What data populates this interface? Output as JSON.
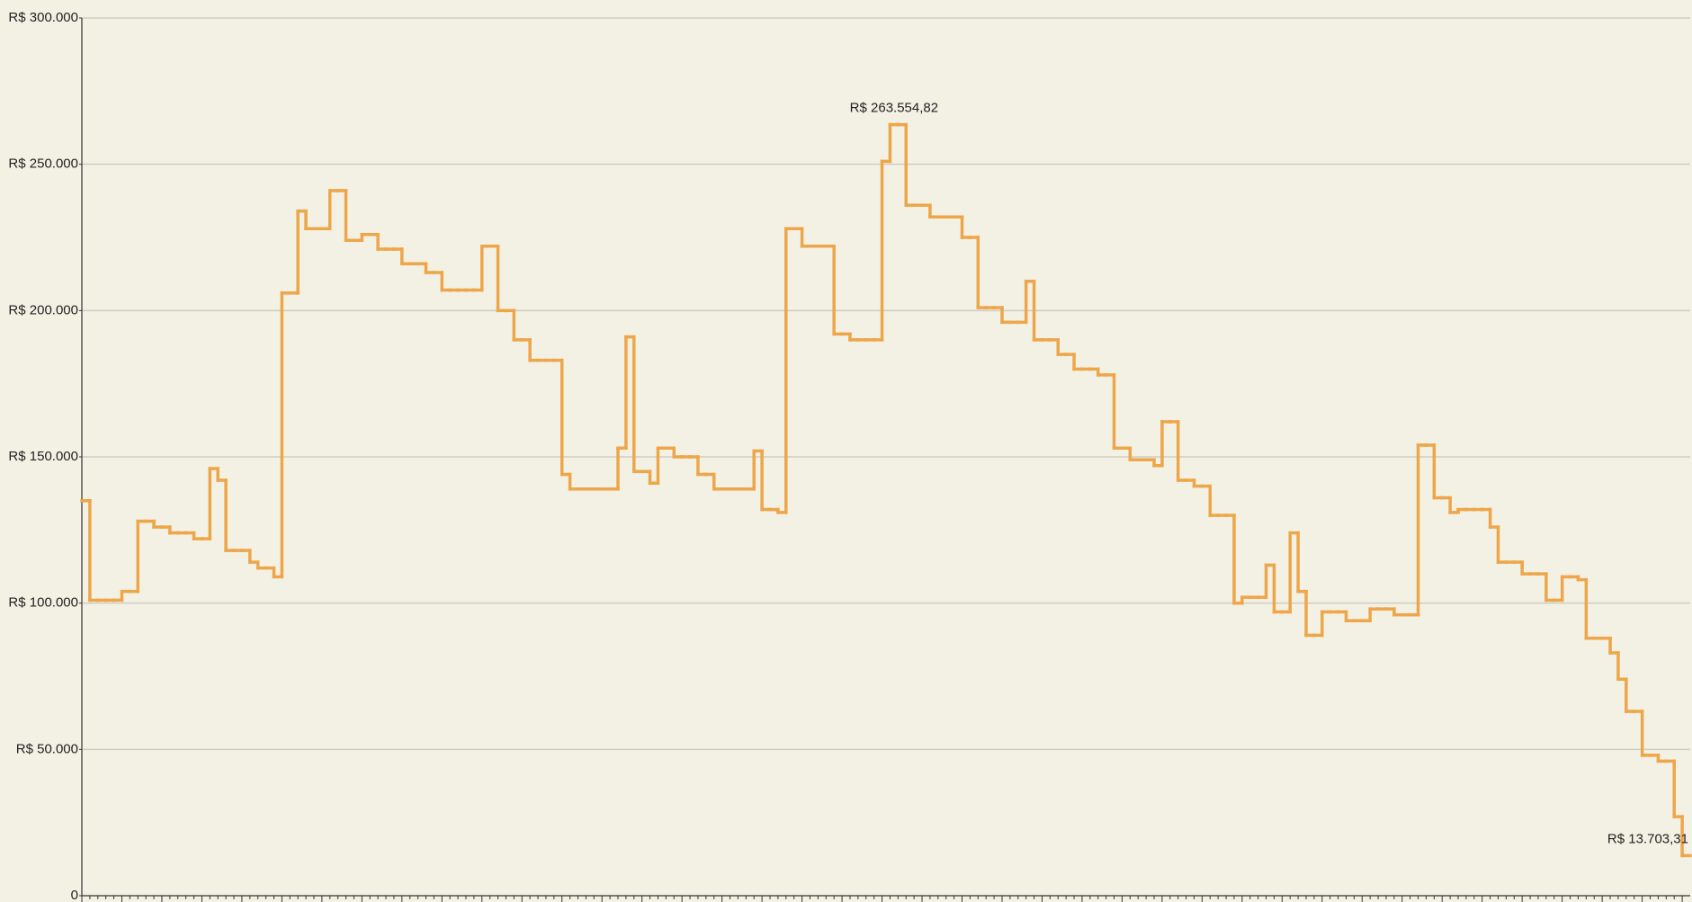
{
  "chart_data": {
    "type": "line",
    "step": true,
    "color": "#eea64a",
    "grid": true,
    "ylim": [
      0,
      300000
    ],
    "yticks": [
      0,
      {
        "value": 50000,
        "label": "R$ 50.000"
      },
      {
        "value": 100000,
        "label": "R$ 100.000"
      },
      {
        "value": 150000,
        "label": "R$ 150.000"
      },
      {
        "value": 200000,
        "label": "R$ 200.000"
      },
      {
        "value": 250000,
        "label": "R$ 250.000"
      },
      {
        "value": 300000,
        "label": "R$ 300.000"
      }
    ],
    "annotations": [
      {
        "text": "R$ 263.554,82",
        "value": 263554.82
      },
      {
        "text": "R$ 13.703,31",
        "value": 13703.31
      }
    ],
    "categories": [
      null,
      null,
      null,
      null,
      null,
      null,
      null,
      null,
      null,
      null,
      null,
      null,
      null,
      null,
      null,
      null,
      null,
      null,
      null,
      null,
      null,
      null,
      null,
      null,
      null,
      null,
      null,
      null,
      null,
      null,
      null,
      null,
      null,
      null,
      null,
      null,
      null,
      null,
      null,
      null,
      null,
      null,
      null,
      null,
      null,
      null,
      null,
      null,
      null,
      null,
      null,
      null,
      null,
      null,
      null,
      null,
      null,
      null,
      null,
      null,
      null,
      null,
      null,
      null,
      null,
      null,
      null,
      null,
      null,
      null,
      null,
      null,
      null,
      null,
      null,
      null,
      null,
      null,
      null,
      null,
      null,
      null,
      null,
      null,
      null,
      null,
      null,
      null,
      null,
      null,
      null,
      null,
      null,
      null,
      null,
      null,
      null,
      null,
      null,
      null,
      null,
      null,
      null,
      null,
      null,
      null,
      null,
      null,
      null,
      null,
      null,
      null,
      null,
      null,
      null,
      null,
      null,
      null,
      null,
      null,
      null,
      null,
      null,
      null,
      null,
      null,
      null,
      null,
      null,
      null,
      null,
      null,
      null,
      null,
      null,
      null,
      null,
      null,
      null,
      null,
      null,
      null,
      null,
      null,
      null,
      null,
      null,
      null,
      null,
      null,
      null,
      null,
      null,
      null,
      null,
      null,
      null,
      null,
      null,
      null,
      null,
      null,
      null,
      null,
      null,
      null,
      null,
      null,
      null,
      null,
      null,
      null,
      null,
      null,
      null,
      null,
      null,
      null,
      null,
      null,
      null,
      null,
      null,
      null,
      null,
      null,
      null,
      null,
      null,
      null,
      null,
      null,
      null,
      null,
      null,
      null,
      null,
      null,
      null,
      null,
      null
    ],
    "values": [
      135000,
      101000,
      101000,
      101000,
      101000,
      104000,
      104000,
      128000,
      128000,
      126000,
      126000,
      124000,
      124000,
      124000,
      122000,
      122000,
      146000,
      142000,
      118000,
      118000,
      118000,
      114000,
      112000,
      112000,
      109000,
      206000,
      206000,
      234000,
      228000,
      228000,
      228000,
      241000,
      241000,
      224000,
      224000,
      226000,
      226000,
      221000,
      221000,
      221000,
      216000,
      216000,
      216000,
      213000,
      213000,
      207000,
      207000,
      207000,
      207000,
      207000,
      222000,
      222000,
      200000,
      200000,
      190000,
      190000,
      183000,
      183000,
      183000,
      183000,
      144000,
      139000,
      139000,
      139000,
      139000,
      139000,
      139000,
      153000,
      191000,
      145000,
      145000,
      141000,
      153000,
      153000,
      150000,
      150000,
      150000,
      144000,
      144000,
      139000,
      139000,
      139000,
      139000,
      139000,
      152000,
      132000,
      132000,
      131000,
      228000,
      228000,
      222000,
      222000,
      222000,
      222000,
      192000,
      192000,
      190000,
      190000,
      190000,
      190000,
      251000,
      263554.82,
      263554.82,
      236000,
      236000,
      236000,
      232000,
      232000,
      232000,
      232000,
      225000,
      225000,
      201000,
      201000,
      201000,
      196000,
      196000,
      196000,
      210000,
      190000,
      190000,
      190000,
      185000,
      185000,
      180000,
      180000,
      180000,
      178000,
      178000,
      153000,
      153000,
      149000,
      149000,
      149000,
      147000,
      162000,
      162000,
      142000,
      142000,
      140000,
      140000,
      130000,
      130000,
      130000,
      100000,
      102000,
      102000,
      102000,
      113000,
      97000,
      97000,
      124000,
      104000,
      89000,
      89000,
      97000,
      97000,
      97000,
      94000,
      94000,
      94000,
      98000,
      98000,
      98000,
      96000,
      96000,
      96000,
      154000,
      154000,
      136000,
      136000,
      131000,
      132000,
      132000,
      132000,
      132000,
      126000,
      114000,
      114000,
      114000,
      110000,
      110000,
      110000,
      101000,
      101000,
      109000,
      109000,
      108000,
      88000,
      88000,
      88000,
      83000,
      74000,
      63000,
      63000,
      48000,
      48000,
      46000,
      46000,
      27000,
      13703.31
    ]
  }
}
